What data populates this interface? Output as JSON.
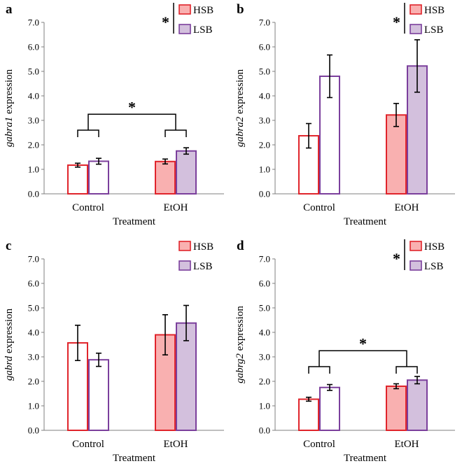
{
  "colors": {
    "hsb_stroke": "#e0242b",
    "hsb_fill": "#f9b0b0",
    "lsb_stroke": "#7b3f9c",
    "lsb_fill": "#d3c0dd",
    "axis": "#7f7f7f",
    "error": "#000000"
  },
  "legend": {
    "items": [
      "HSB",
      "LSB"
    ],
    "placement": "top-right"
  },
  "chart_data": [
    {
      "panel": "a",
      "type": "bar",
      "gene": "gabra1",
      "ylabel_suffix": " expression",
      "xlabel": "Treatment",
      "categories": [
        "Control",
        "EtOH"
      ],
      "ylim": [
        0,
        7
      ],
      "yticks": [
        "0.0",
        "1.0",
        "2.0",
        "3.0",
        "4.0",
        "5.0",
        "6.0",
        "7.0"
      ],
      "series": [
        {
          "name": "HSB",
          "values": [
            1.17,
            1.32
          ],
          "errors": [
            0.08,
            0.1
          ]
        },
        {
          "name": "LSB",
          "values": [
            1.33,
            1.75
          ],
          "errors": [
            0.12,
            0.13
          ]
        }
      ],
      "legend_star": "*",
      "bracket": {
        "label": "*",
        "y": 3.25
      }
    },
    {
      "panel": "b",
      "type": "bar",
      "gene": "gabra2",
      "ylabel_suffix": " expression",
      "xlabel": "Treatment",
      "categories": [
        "Control",
        "EtOH"
      ],
      "ylim": [
        0,
        7
      ],
      "yticks": [
        "0.0",
        "1.0",
        "2.0",
        "3.0",
        "4.0",
        "5.0",
        "6.0",
        "7.0"
      ],
      "series": [
        {
          "name": "HSB",
          "values": [
            2.37,
            3.22
          ],
          "errors": [
            0.5,
            0.47
          ]
        },
        {
          "name": "LSB",
          "values": [
            4.8,
            5.22
          ],
          "errors": [
            0.87,
            1.07
          ]
        }
      ],
      "legend_star": "*",
      "bracket": null
    },
    {
      "panel": "c",
      "type": "bar",
      "gene": "gabrd",
      "ylabel_suffix": " expression",
      "xlabel": "Treatment",
      "categories": [
        "Control",
        "EtOH"
      ],
      "ylim": [
        0,
        7
      ],
      "yticks": [
        "0.0",
        "1.0",
        "2.0",
        "3.0",
        "4.0",
        "5.0",
        "6.0",
        "7.0"
      ],
      "series": [
        {
          "name": "HSB",
          "values": [
            3.57,
            3.9
          ],
          "errors": [
            0.72,
            0.82
          ]
        },
        {
          "name": "LSB",
          "values": [
            2.88,
            4.38
          ],
          "errors": [
            0.27,
            0.72
          ]
        }
      ],
      "legend_star": "",
      "bracket": null
    },
    {
      "panel": "d",
      "type": "bar",
      "gene": "gabrg2",
      "ylabel_suffix": " expression",
      "xlabel": "Treatment",
      "categories": [
        "Control",
        "EtOH"
      ],
      "ylim": [
        0,
        7
      ],
      "yticks": [
        "0.0",
        "1.0",
        "2.0",
        "3.0",
        "4.0",
        "5.0",
        "6.0",
        "7.0"
      ],
      "series": [
        {
          "name": "HSB",
          "values": [
            1.27,
            1.8
          ],
          "errors": [
            0.08,
            0.1
          ]
        },
        {
          "name": "LSB",
          "values": [
            1.75,
            2.05
          ],
          "errors": [
            0.12,
            0.15
          ]
        }
      ],
      "legend_star": "*",
      "bracket": {
        "label": "*",
        "y": 3.25
      }
    }
  ]
}
